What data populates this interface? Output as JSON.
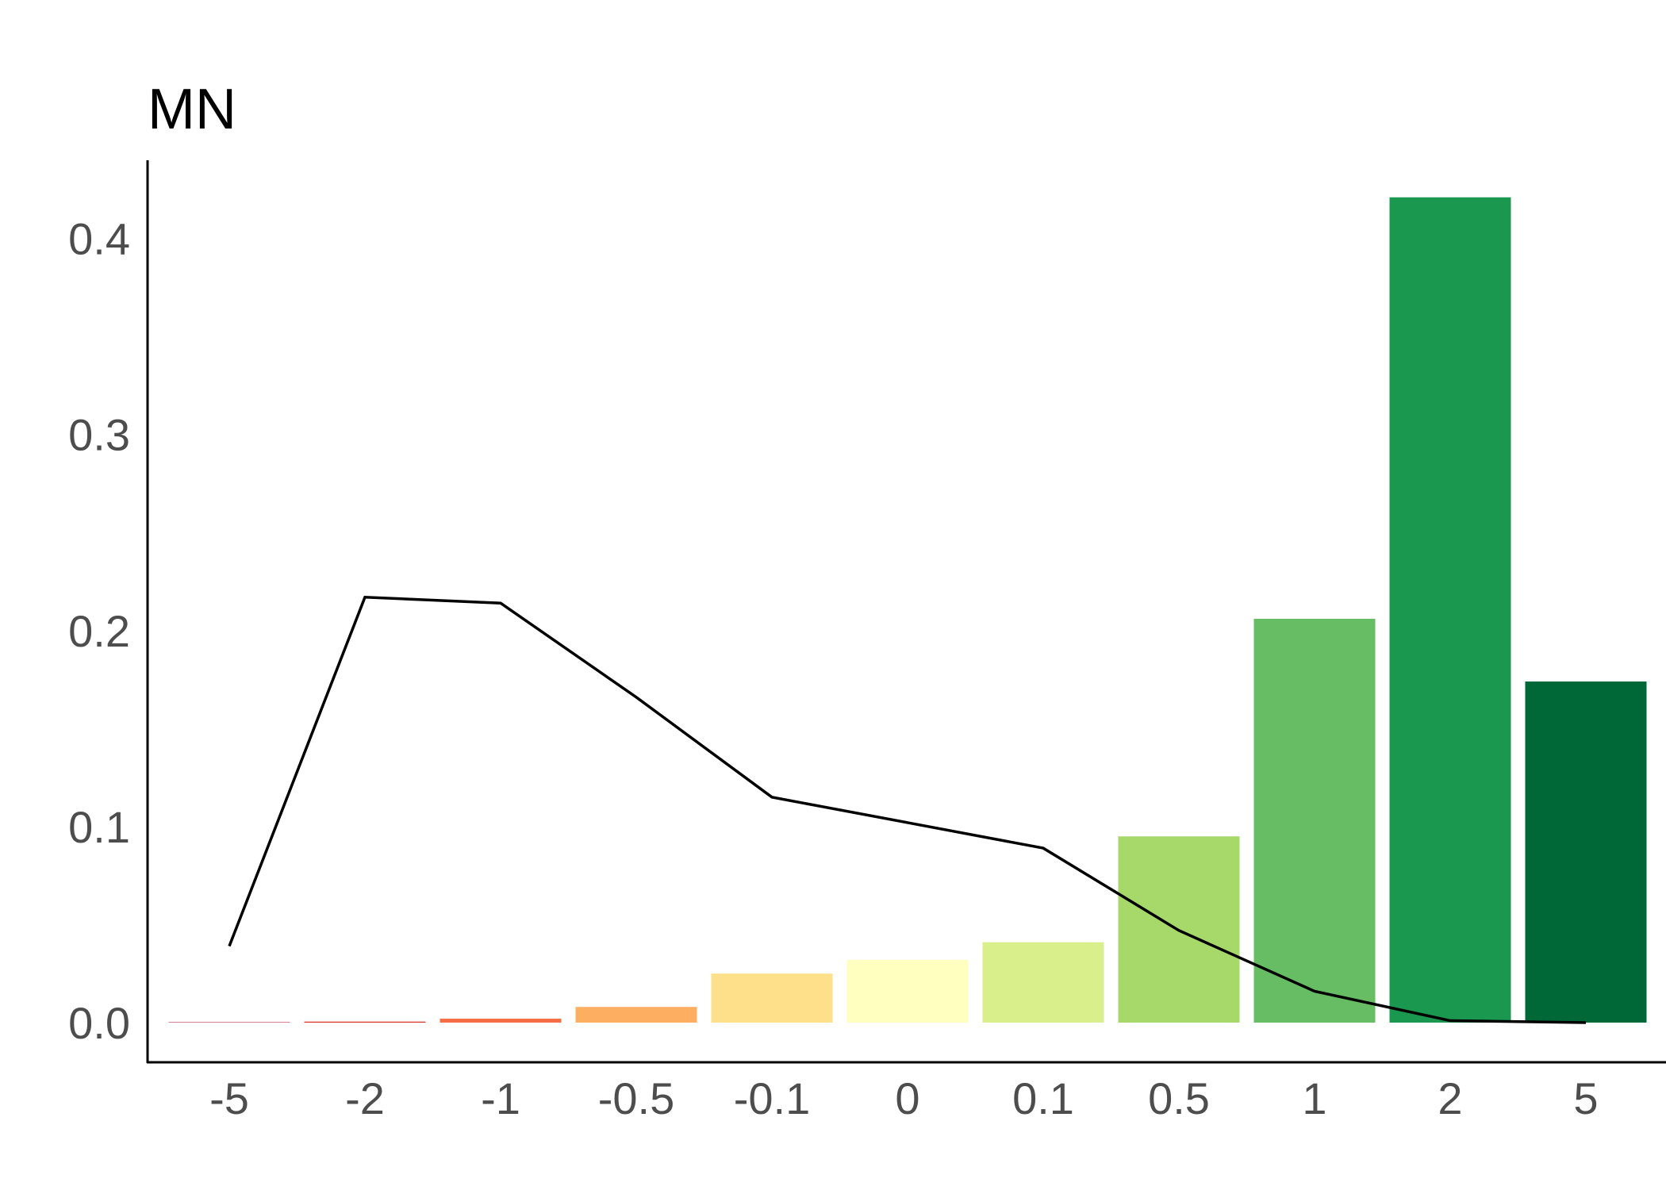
{
  "chart_data": {
    "type": "bar",
    "title": "MN",
    "xlabel": "",
    "ylabel": "",
    "categories": [
      "-5",
      "-2",
      "-1",
      "-0.5",
      "-0.1",
      "0",
      "0.1",
      "0.5",
      "1",
      "2",
      "5"
    ],
    "series": [
      {
        "type": "bar",
        "values": [
          0.0,
          0.0005,
          0.002,
          0.008,
          0.025,
          0.032,
          0.041,
          0.095,
          0.206,
          0.421,
          0.174
        ],
        "colors": [
          "#a50026",
          "#d73027",
          "#f46d43",
          "#fdae61",
          "#fee08b",
          "#ffffbf",
          "#d9ef8b",
          "#a6d96a",
          "#66bd63",
          "#1a9850",
          "#006837"
        ]
      },
      {
        "type": "line",
        "values": [
          0.039,
          0.217,
          0.214,
          0.166,
          0.115,
          0.102,
          0.089,
          0.047,
          0.016,
          0.001,
          0.0
        ],
        "color": "#000000"
      }
    ],
    "ylim": [
      -0.02,
      0.44
    ],
    "yticks": [
      0.0,
      0.1,
      0.2,
      0.3,
      0.4
    ],
    "ytick_labels": [
      "0.0",
      "0.1",
      "0.2",
      "0.3",
      "0.4"
    ],
    "grid": false,
    "legend": "none"
  }
}
